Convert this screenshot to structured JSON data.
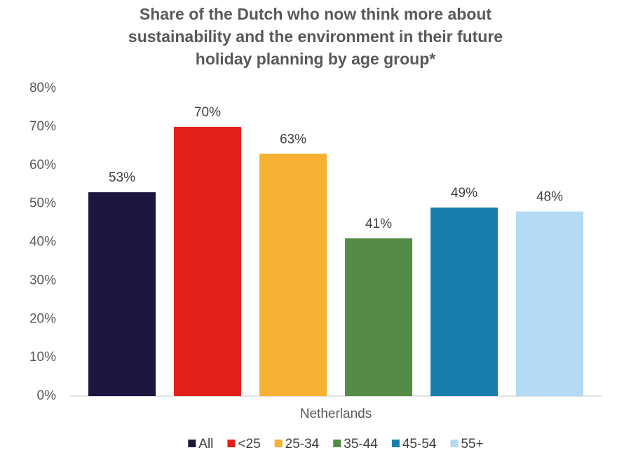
{
  "chart_data": {
    "type": "bar",
    "title": [
      "Share of the Dutch who now think more about",
      "sustainability and the environment in their future",
      "holiday planning by age group*"
    ],
    "categories": [
      "Netherlands"
    ],
    "series": [
      {
        "name": "All",
        "color": "#1f1640",
        "values": [
          53
        ],
        "value_labels": [
          "53%"
        ]
      },
      {
        "name": "<25",
        "color": "#e3211b",
        "values": [
          70
        ],
        "value_labels": [
          "70%"
        ]
      },
      {
        "name": "25-34",
        "color": "#f6b133",
        "values": [
          63
        ],
        "value_labels": [
          "63%"
        ]
      },
      {
        "name": "35-44",
        "color": "#548c47",
        "values": [
          41
        ],
        "value_labels": [
          "41%"
        ]
      },
      {
        "name": "45-54",
        "color": "#167fae",
        "values": [
          49
        ],
        "value_labels": [
          "49%"
        ]
      },
      {
        "name": "55+",
        "color": "#b3dbf4",
        "values": [
          48
        ],
        "value_labels": [
          "48%"
        ]
      }
    ],
    "ylim": [
      0,
      80
    ],
    "yticks": [
      {
        "value": 0,
        "label": "0%"
      },
      {
        "value": 10,
        "label": "10%"
      },
      {
        "value": 20,
        "label": "20%"
      },
      {
        "value": 30,
        "label": "30%"
      },
      {
        "value": 40,
        "label": "40%"
      },
      {
        "value": 50,
        "label": "50%"
      },
      {
        "value": 60,
        "label": "60%"
      },
      {
        "value": 70,
        "label": "70%"
      },
      {
        "value": 80,
        "label": "80%"
      }
    ],
    "grid": false,
    "legend": "bottom"
  }
}
